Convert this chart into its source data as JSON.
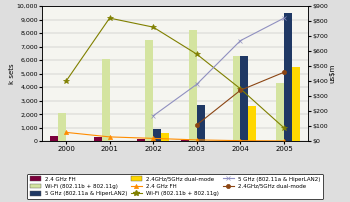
{
  "years": [
    2000,
    2001,
    2002,
    2003,
    2004,
    2005
  ],
  "bar_24ghz_fh": [
    400,
    300,
    200,
    100,
    50,
    50
  ],
  "bar_wifi": [
    2100,
    6100,
    7500,
    8200,
    6300,
    4300
  ],
  "bar_5ghz": [
    0,
    0,
    900,
    2700,
    6300,
    9500
  ],
  "bar_dualmode": [
    0,
    0,
    600,
    0,
    2600,
    5500
  ],
  "line_24ghz_fh": [
    60,
    30,
    20,
    10,
    5,
    3
  ],
  "line_wifi": [
    400,
    820,
    760,
    580,
    350,
    90
  ],
  "line_5ghz": [
    null,
    null,
    170,
    380,
    670,
    820
  ],
  "line_dualmode": [
    null,
    null,
    null,
    110,
    340,
    460
  ],
  "bar_colors": {
    "24ghz_fh": "#7b003b",
    "wifi": "#d4e4a0",
    "5ghz": "#1f3864",
    "dualmode": "#ffd700"
  },
  "line_colors": {
    "24ghz_fh": "#ff8c00",
    "wifi": "#808000",
    "5ghz": "#9090c0",
    "dualmode": "#8b4513"
  },
  "line_markers": {
    "24ghz_fh": "^",
    "wifi": "*",
    "5ghz": "x",
    "dualmode": "o"
  },
  "ylim_left": [
    0,
    10000
  ],
  "ylim_right": [
    0,
    900
  ],
  "yticks_left": [
    0,
    1000,
    2000,
    3000,
    4000,
    5000,
    6000,
    7000,
    8000,
    9000,
    10000
  ],
  "yticks_right": [
    0,
    100,
    200,
    300,
    400,
    500,
    600,
    700,
    800,
    900
  ],
  "ylabel_left": "k sets",
  "ylabel_right": "us$m",
  "bg_color": "#dedede",
  "plot_bg": "#f5f5f0",
  "legend": {
    "row1": [
      "2.4 GHz FH (bar)",
      "Wi-Fi (802.11b + 802.11g) (bar)",
      "5 GHz (802.11a & HiperLAN2) (bar)"
    ],
    "row2": [
      "2.4GHz/5GHz dual-mode (bar)",
      "2.4 GHz FH (line)",
      "Wi-Fi (802.11b + 802.11g) (line)"
    ],
    "row3": [
      "5 GHz (802.11a & HiperLAN2) (line)",
      "2.4GHz/5GHz dual-mode (line)",
      ""
    ]
  }
}
